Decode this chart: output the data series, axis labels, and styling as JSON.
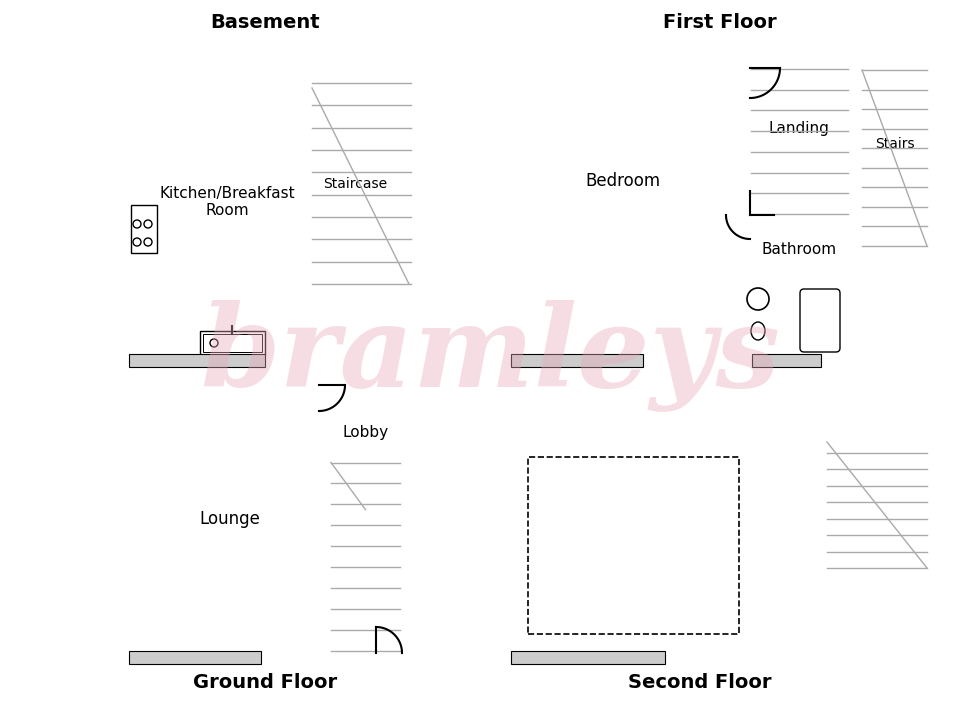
{
  "bg_color": "#ffffff",
  "wall_color": "#000000",
  "watermark": "bramleys",
  "watermark_color": "#e8aabb",
  "titles": {
    "basement": "Basement",
    "ground": "Ground Floor",
    "first": "First Floor",
    "second": "Second Floor"
  },
  "title_fontsize": 14,
  "room_fontsize": 11,
  "stair_color": "#aaaaaa",
  "window_color": "#cccccc"
}
